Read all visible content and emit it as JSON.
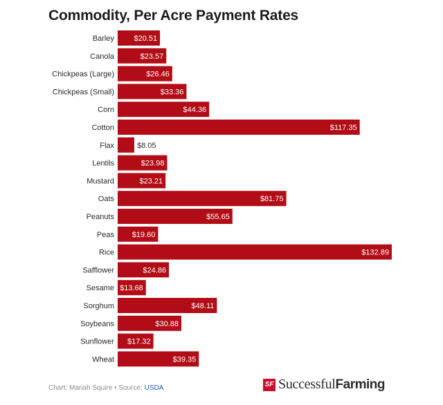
{
  "chart_data": {
    "type": "bar",
    "orientation": "horizontal",
    "title": "Commodity, Per Acre Payment Rates",
    "categories": [
      "Barley",
      "Canola",
      "Chickpeas (Large)",
      "Chickpeas (Small)",
      "Corn",
      "Cotton",
      "Flax",
      "Lentils",
      "Mustard",
      "Oats",
      "Peanuts",
      "Peas",
      "Rice",
      "Safflower",
      "Sesame",
      "Sorghum",
      "Soybeans",
      "Sunflower",
      "Wheat"
    ],
    "values": [
      20.51,
      23.57,
      26.46,
      33.36,
      44.36,
      117.35,
      8.05,
      23.98,
      23.21,
      81.75,
      55.65,
      19.6,
      132.89,
      24.86,
      13.68,
      48.11,
      30.88,
      17.32,
      39.35
    ],
    "value_labels": [
      "$20.51",
      "$23.57",
      "$26.46",
      "$33.36",
      "$44.36",
      "$117.35",
      "$8.05",
      "$23.98",
      "$23.21",
      "$81.75",
      "$55.65",
      "$19.60",
      "$132.89",
      "$24.86",
      "$13.68",
      "$48.11",
      "$30.88",
      "$17.32",
      "$39.35"
    ],
    "xlabel": "",
    "ylabel": "",
    "grid": false,
    "legend": "none",
    "bar_color": "#b20d16"
  },
  "footer": {
    "credit": "Chart: Mariah Squire • Source: ",
    "source_link": "USDA"
  },
  "logo": {
    "mark": "SF",
    "word1": "Successful",
    "word2": "Farming"
  }
}
